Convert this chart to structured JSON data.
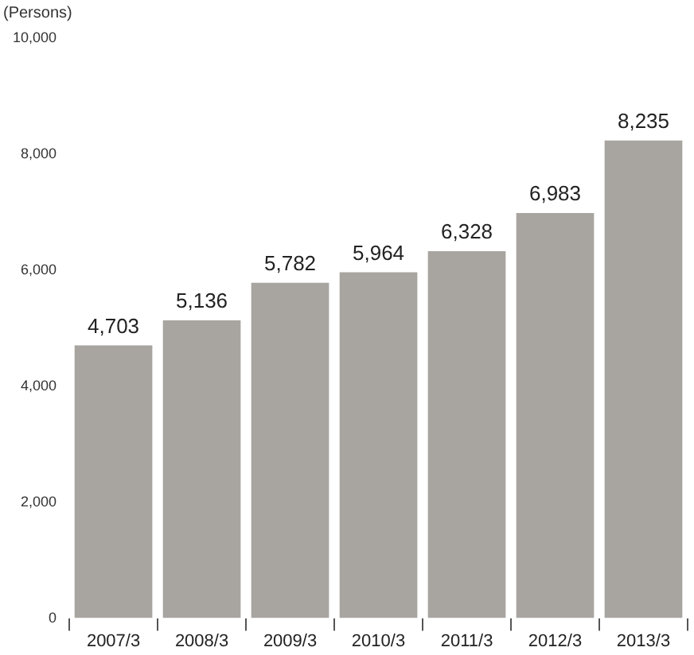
{
  "chart_data": {
    "type": "bar",
    "ylabel": "(Persons)",
    "categories": [
      "2007/3",
      "2008/3",
      "2009/3",
      "2010/3",
      "2011/3",
      "2012/3",
      "2013/3"
    ],
    "values": [
      4703,
      5136,
      5782,
      5964,
      6328,
      6983,
      8235
    ],
    "value_labels": [
      "4,703",
      "5,136",
      "5,782",
      "5,964",
      "6,328",
      "6,983",
      "8,235"
    ],
    "color": "#a8a4a0",
    "ylim": [
      0,
      10000
    ],
    "yticks": [
      {
        "value": 0,
        "label": "0"
      },
      {
        "value": 2000,
        "label": "2,000"
      },
      {
        "value": 4000,
        "label": "4,000"
      },
      {
        "value": 6000,
        "label": "6,000"
      },
      {
        "value": 8000,
        "label": "8,000"
      },
      {
        "value": 10000,
        "label": "10,000"
      }
    ],
    "grid": false,
    "legend": false
  }
}
